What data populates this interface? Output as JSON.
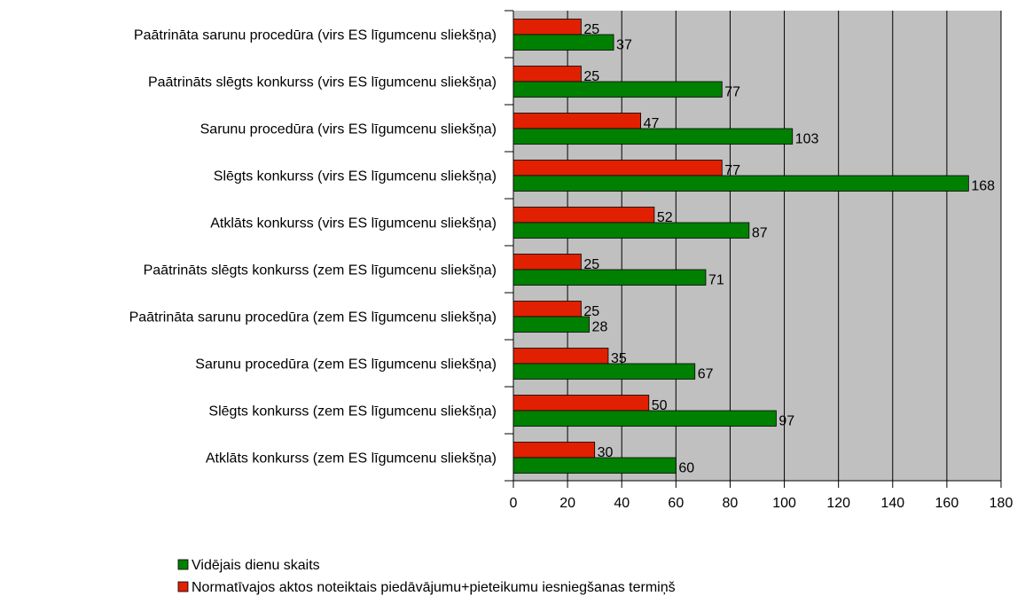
{
  "chart_data": {
    "type": "hbar",
    "categories": [
      "Paātrināta sarunu procedūra (virs ES līgumcenu sliekšņa)",
      "Paātrināts slēgts konkurss (virs ES līgumcenu sliekšņa)",
      "Sarunu procedūra (virs ES līgumcenu sliekšņa)",
      "Slēgts konkurss (virs ES līgumcenu sliekšņa)",
      "Atklāts konkurss (virs ES līgumcenu sliekšņa)",
      "Paātrināts slēgts konkurss (zem ES līgumcenu sliekšņa)",
      "Paātrināta sarunu procedūra (zem ES līgumcenu sliekšņa)",
      "Sarunu procedūra (zem ES līgumcenu sliekšņa)",
      "Slēgts konkurss (zem ES līgumcenu sliekšņa)",
      "Atklāts konkurss (zem ES līgumcenu sliekšņa)"
    ],
    "series": [
      {
        "name": "Vidējais dienu skaits",
        "color": "#008000",
        "values": [
          37,
          77,
          103,
          168,
          87,
          71,
          28,
          67,
          97,
          60
        ]
      },
      {
        "name": "Normatīvajos aktos noteiktais piedāvājumu+pieteikumu iesniegšanas termiņš",
        "color": "#e02000",
        "values": [
          25,
          25,
          47,
          77,
          52,
          25,
          25,
          35,
          50,
          30
        ]
      }
    ],
    "xlim": [
      0,
      180
    ],
    "xticks": [
      0,
      20,
      40,
      60,
      80,
      100,
      120,
      140,
      160,
      180
    ],
    "grid": true,
    "plot_background": "#c0c0c0"
  }
}
